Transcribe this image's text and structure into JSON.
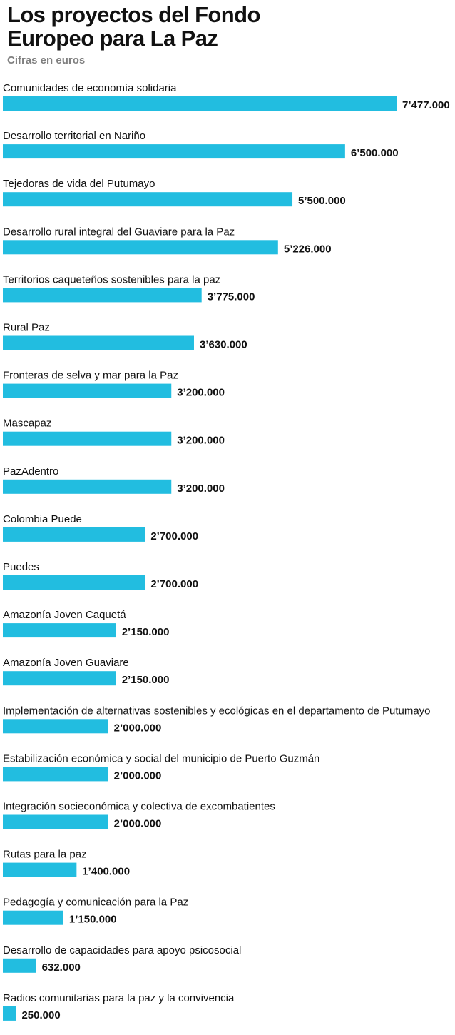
{
  "header": {
    "title_line1": "Los proyectos del Fondo",
    "title_line2": "Europeo para La Paz",
    "subtitle": "Cifras en euros"
  },
  "colors": {
    "bar": "#22bde0",
    "text": "#111111",
    "subtitle": "#808080"
  },
  "chart_data": {
    "type": "bar",
    "orientation": "horizontal",
    "title": "Los proyectos del Fondo Europeo para La Paz",
    "subtitle": "Cifras en euros",
    "xlim": [
      0,
      7477000
    ],
    "grid": false,
    "legend": "none",
    "categories": [
      "Comunidades de economía solidaria",
      "Desarrollo territorial en Nariño",
      "Tejedoras de vida del Putumayo",
      "Desarrollo rural integral del Guaviare para la Paz",
      "Territorios caqueteños sostenibles para la paz",
      "Rural Paz",
      "Fronteras de selva y mar para la Paz",
      "Mascapaz",
      "PazAdentro",
      "Colombia Puede",
      "Puedes",
      "Amazonía Joven Caquetá",
      "Amazonía Joven Guaviare",
      "Implementación de alternativas sostenibles y ecológicas en el departamento de Putumayo",
      "Estabilización económica y social del municipio de Puerto Guzmán",
      "Integración socieconómica y colectiva de excombatientes",
      "Rutas para la paz",
      "Pedagogía y comunicación para la Paz",
      "Desarrollo de capacidades para apoyo psicosocial",
      "Radios comunitarias para la paz y la convivencia"
    ],
    "values": [
      7477000,
      6500000,
      5500000,
      5226000,
      3775000,
      3630000,
      3200000,
      3200000,
      3200000,
      2700000,
      2700000,
      2150000,
      2150000,
      2000000,
      2000000,
      2000000,
      1400000,
      1150000,
      632000,
      250000
    ],
    "value_labels": [
      "7’477.000",
      "6’500.000",
      "5’500.000",
      "5’226.000",
      "3’775.000",
      "3’630.000",
      "3’200.000",
      "3’200.000",
      "3’200.000",
      "2’700.000",
      "2’700.000",
      "2’150.000",
      "2’150.000",
      "2’000.000",
      "2’000.000",
      "2’000.000",
      "1’400.000",
      "1’150.000",
      "632.000",
      "250.000"
    ]
  }
}
